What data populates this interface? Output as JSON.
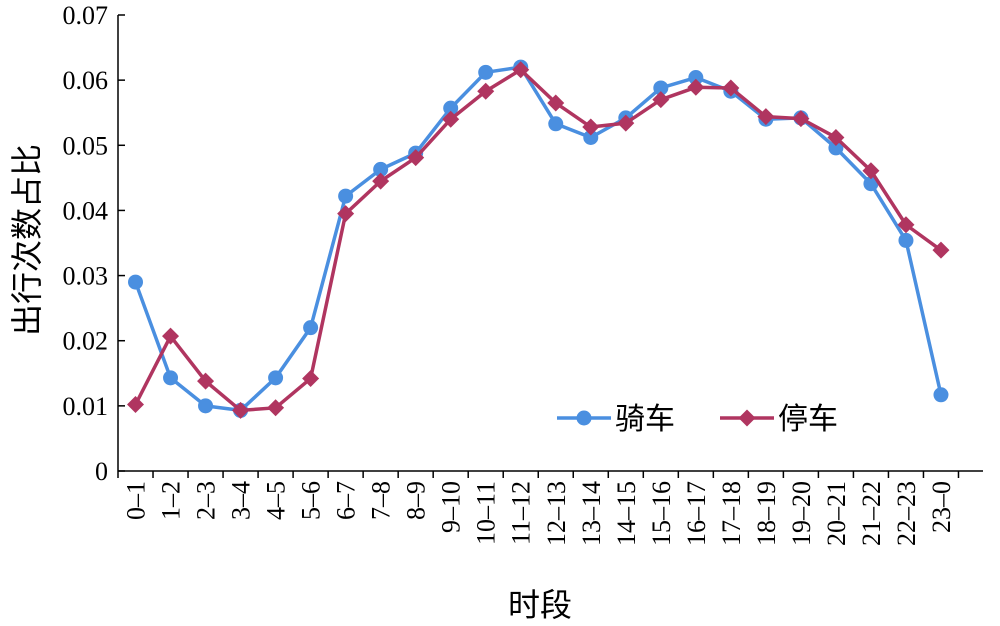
{
  "chart_data": {
    "type": "line",
    "xlabel": "时段",
    "ylabel": "出行次数占比",
    "ylim": [
      0,
      0.07
    ],
    "y_ticks": [
      "0",
      "0.01",
      "0.02",
      "0.03",
      "0.04",
      "0.05",
      "0.06",
      "0.07"
    ],
    "categories": [
      "0–1",
      "1–2",
      "2–3",
      "3–4",
      "4–5",
      "5–6",
      "6–7",
      "7–8",
      "8–9",
      "9–10",
      "10–11",
      "11–12",
      "12–13",
      "13–14",
      "14–15",
      "15–16",
      "16–17",
      "17–18",
      "18–19",
      "19–20",
      "20–21",
      "21–22",
      "22–23",
      "23–0"
    ],
    "legend_position": "bottom-right",
    "grid": false,
    "series": [
      {
        "name": "骑车",
        "color": "#4a8fe0",
        "marker": "circle",
        "values": [
          0.029,
          0.0143,
          0.01,
          0.0093,
          0.0143,
          0.022,
          0.0422,
          0.0463,
          0.0488,
          0.0557,
          0.0612,
          0.062,
          0.0533,
          0.0512,
          0.0542,
          0.0588,
          0.0604,
          0.0583,
          0.054,
          0.0542,
          0.0496,
          0.0441,
          0.0354,
          0.0117
        ]
      },
      {
        "name": "停车",
        "color": "#b03560",
        "marker": "diamond",
        "values": [
          0.0102,
          0.0207,
          0.0138,
          0.0093,
          0.0097,
          0.0142,
          0.0395,
          0.0445,
          0.0481,
          0.054,
          0.0583,
          0.0616,
          0.0565,
          0.0528,
          0.0534,
          0.057,
          0.0589,
          0.0588,
          0.0544,
          0.0541,
          0.0512,
          0.0461,
          0.0378,
          0.0339
        ]
      }
    ]
  }
}
